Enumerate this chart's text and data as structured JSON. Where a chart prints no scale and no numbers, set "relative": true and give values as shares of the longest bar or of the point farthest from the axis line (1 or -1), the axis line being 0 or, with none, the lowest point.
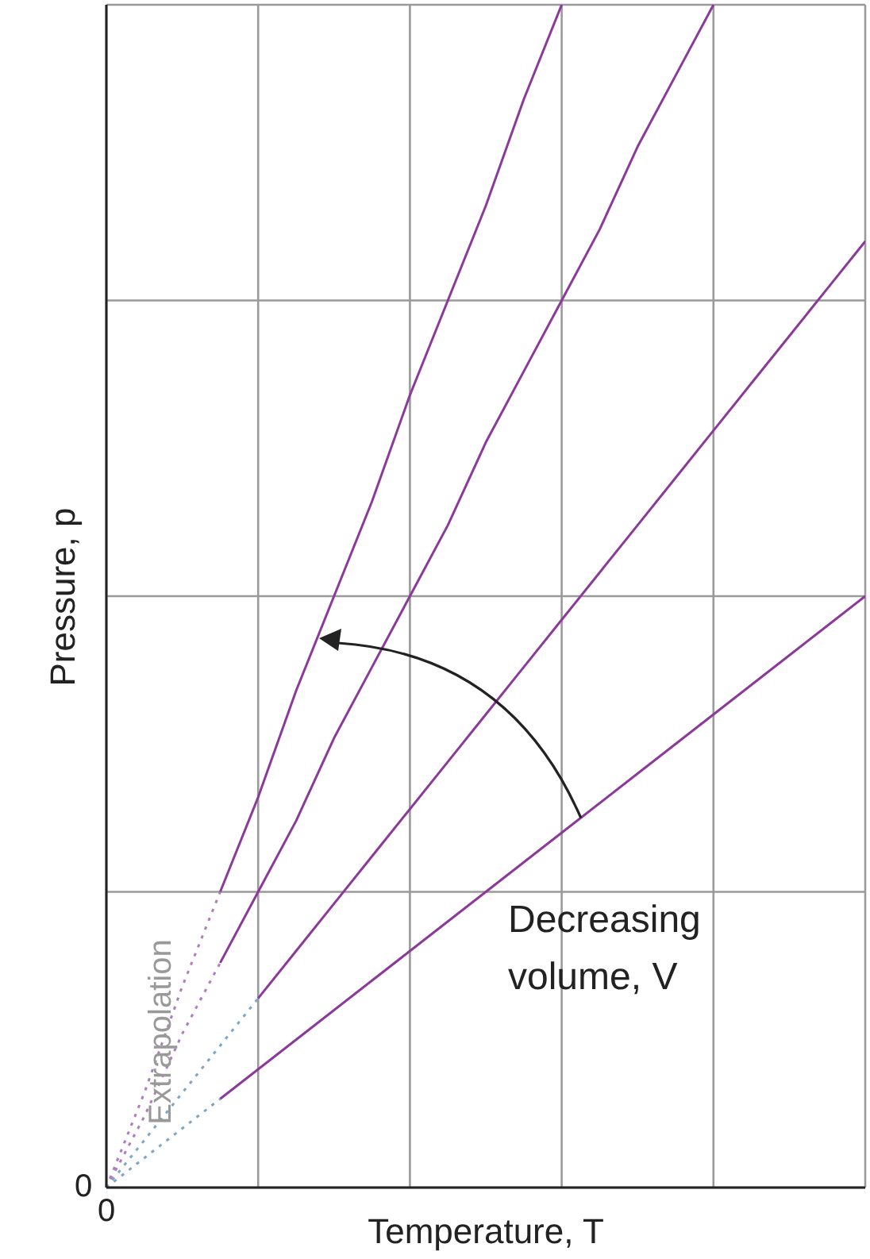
{
  "chart_data": {
    "type": "line",
    "xlabel": "Temperature, T",
    "ylabel": "Pressure, p",
    "relative": true,
    "grid": true,
    "legend": false,
    "marker": "none",
    "categories": [
      null,
      null,
      null,
      null,
      null,
      null,
      null,
      null,
      null,
      null,
      null,
      null,
      null,
      null,
      null,
      null,
      null,
      null,
      null,
      null,
      null
    ],
    "series": [
      {
        "color": "#8b3a9a",
        "line_style": "solid",
        "values": [
          null,
          null,
          null,
          0.25,
          0.33,
          0.42,
          0.5,
          0.58,
          0.67,
          0.75,
          0.83,
          0.92,
          1,
          null,
          null,
          null,
          null,
          null,
          null,
          null,
          null
        ]
      },
      {
        "color": "#8b3a9a",
        "line_style": "solid",
        "values": [
          null,
          null,
          null,
          0.19,
          0.25,
          0.31,
          0.38,
          0.44,
          0.5,
          0.56,
          0.63,
          0.69,
          0.75,
          0.81,
          0.88,
          0.94,
          1,
          null,
          null,
          null,
          null
        ]
      },
      {
        "color": "#8b3a9a",
        "line_style": "solid",
        "values": [
          null,
          null,
          null,
          null,
          0.16,
          0.2,
          0.24,
          0.28,
          0.32,
          0.36,
          0.4,
          0.44,
          0.48,
          0.52,
          0.56,
          0.6,
          0.64,
          0.68,
          0.72,
          0.76,
          0.8
        ]
      },
      {
        "color": "#8b3a9a",
        "line_style": "solid",
        "values": [
          null,
          null,
          null,
          0.075,
          0.1,
          0.125,
          0.15,
          0.175,
          0.2,
          0.225,
          0.25,
          0.275,
          0.3,
          0.325,
          0.35,
          0.375,
          0.4,
          0.425,
          0.45,
          0.475,
          0.5
        ]
      },
      {
        "color": "#b07cc0",
        "line_style": "dotted",
        "values": [
          0,
          0.08,
          0.17,
          0.25,
          null,
          null,
          null,
          null,
          null,
          null,
          null,
          null,
          null,
          null,
          null,
          null,
          null,
          null,
          null,
          null,
          null
        ]
      },
      {
        "color": "#b07cc0",
        "line_style": "dotted",
        "values": [
          0,
          0.06,
          0.13,
          0.19,
          null,
          null,
          null,
          null,
          null,
          null,
          null,
          null,
          null,
          null,
          null,
          null,
          null,
          null,
          null,
          null,
          null
        ]
      },
      {
        "color": "#7aa6c8",
        "line_style": "dotted",
        "values": [
          0,
          0.04,
          0.08,
          0.12,
          0.16,
          null,
          null,
          null,
          null,
          null,
          null,
          null,
          null,
          null,
          null,
          null,
          null,
          null,
          null,
          null,
          null
        ]
      },
      {
        "color": "#7aa6c8",
        "line_style": "dotted",
        "values": [
          0,
          0.025,
          0.05,
          0.075,
          null,
          null,
          null,
          null,
          null,
          null,
          null,
          null,
          null,
          null,
          null,
          null,
          null,
          null,
          null,
          null,
          null
        ]
      }
    ],
    "annotations": [
      "Decreasing volume, V",
      "Extrapolation",
      "0",
      "0"
    ]
  }
}
